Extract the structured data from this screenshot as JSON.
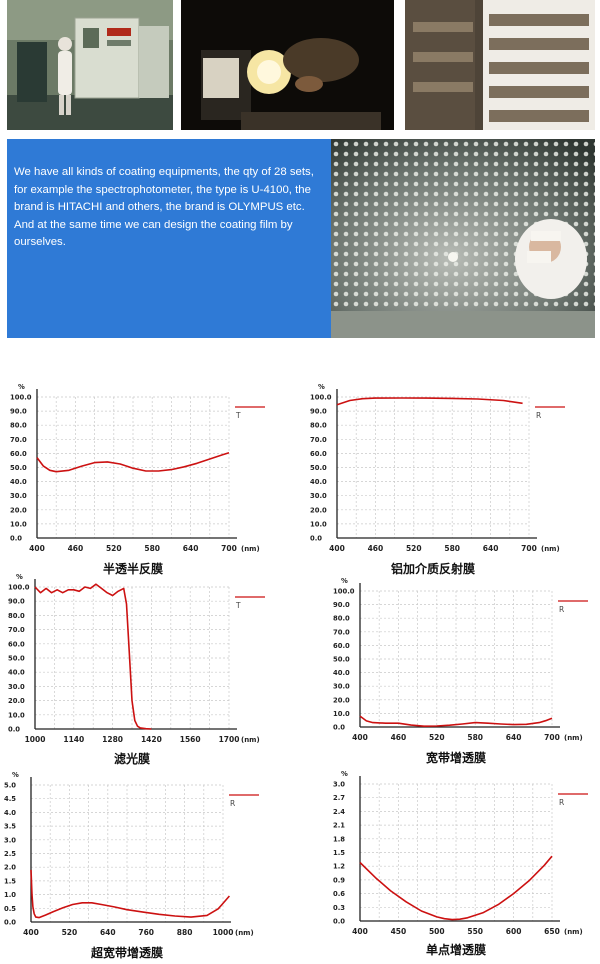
{
  "intro_text": "We have all kinds of coating equipments, the  qty of 28 sets, for example the spectrophotometer, the type is U-4100, the brand is HITACHI and others, the brand is OLYMPUS etc. And at the same time we can design the coating film by ourselves.",
  "colors": {
    "panel_blue": "#2f7ad6",
    "curve_red": "#cc1111",
    "grid": "#c9c9c9",
    "axis": "#222222"
  },
  "photos": [
    {
      "name": "coating-machine-photo"
    },
    {
      "name": "lens-inspection-photo"
    },
    {
      "name": "lens-tray-rack-photo"
    },
    {
      "name": "coating-dome-photo"
    }
  ],
  "chart_data": [
    {
      "type": "line",
      "title": "半透半反膜",
      "unit_label": "%",
      "xunit": "(nm)",
      "legend": "T",
      "grid": true,
      "xlim": [
        400,
        700
      ],
      "ylim": [
        0,
        100
      ],
      "xticks": [
        "400",
        "460",
        "520",
        "580",
        "640",
        "700"
      ],
      "yticks": [
        "0.0",
        "10.0",
        "20.0",
        "30.0",
        "40.0",
        "50.0",
        "60.0",
        "70.0",
        "80.0",
        "90.0",
        "100.0"
      ],
      "series": [
        {
          "x": [
            400,
            410,
            420,
            430,
            450,
            470,
            490,
            510,
            530,
            550,
            570,
            590,
            610,
            630,
            650,
            670,
            690,
            700
          ],
          "y": [
            57,
            51,
            48,
            47,
            48,
            51,
            53.5,
            54,
            52.5,
            49.5,
            47.5,
            47.5,
            48.5,
            50.5,
            53,
            56,
            59,
            60.5
          ]
        }
      ]
    },
    {
      "type": "line",
      "title": "铝加介质反射膜",
      "unit_label": "%",
      "xunit": "(nm)",
      "legend": "R",
      "grid": true,
      "xlim": [
        400,
        700
      ],
      "ylim": [
        0,
        100
      ],
      "xticks": [
        "400",
        "460",
        "520",
        "580",
        "640",
        "700"
      ],
      "yticks": [
        "0.0",
        "10.0",
        "20.0",
        "30.0",
        "40.0",
        "50.0",
        "60.0",
        "70.0",
        "80.0",
        "90.0",
        "100.0"
      ],
      "series": [
        {
          "x": [
            400,
            420,
            440,
            460,
            500,
            540,
            580,
            620,
            660,
            690
          ],
          "y": [
            94.5,
            97.5,
            98.8,
            99.2,
            99.3,
            99.2,
            99,
            98.6,
            97.5,
            95.5
          ]
        }
      ]
    },
    {
      "type": "line",
      "title": "滤光膜",
      "unit_label": "%",
      "xunit": "(nm)",
      "legend": "T",
      "grid": true,
      "xlim": [
        1000,
        1700
      ],
      "ylim": [
        0,
        100
      ],
      "xticks": [
        "1000",
        "1140",
        "1280",
        "1420",
        "1560",
        "1700"
      ],
      "yticks": [
        "0.0",
        "10.0",
        "20.0",
        "30.0",
        "40.0",
        "50.0",
        "60.0",
        "70.0",
        "80.0",
        "90.0",
        "100.0"
      ],
      "series": [
        {
          "x": [
            1000,
            1020,
            1040,
            1060,
            1080,
            1100,
            1120,
            1140,
            1160,
            1180,
            1200,
            1220,
            1240,
            1260,
            1280,
            1300,
            1320,
            1330,
            1340,
            1350,
            1360,
            1370,
            1380,
            1400,
            1420
          ],
          "y": [
            100,
            96,
            99,
            96,
            98,
            96,
            98,
            98,
            97,
            100,
            99,
            102,
            99,
            96,
            94,
            97,
            99,
            88,
            55,
            20,
            6,
            2,
            0.8,
            0.2,
            0
          ]
        }
      ]
    },
    {
      "type": "line",
      "title": "宽带增透膜",
      "unit_label": "%",
      "xunit": "(nm)",
      "legend": "R",
      "grid": true,
      "xlim": [
        400,
        700
      ],
      "ylim": [
        0,
        100
      ],
      "xticks": [
        "400",
        "460",
        "520",
        "580",
        "640",
        "700"
      ],
      "yticks": [
        "0.0",
        "10.0",
        "20.0",
        "30.0",
        "40.0",
        "50.0",
        "60.0",
        "70.0",
        "80.0",
        "90.0",
        "100.0"
      ],
      "series": [
        {
          "x": [
            400,
            410,
            420,
            440,
            460,
            480,
            500,
            520,
            540,
            560,
            580,
            600,
            620,
            640,
            660,
            680,
            690,
            700
          ],
          "y": [
            8,
            4.5,
            3.2,
            2.8,
            2.8,
            1.4,
            0.6,
            0.7,
            1.3,
            2.2,
            3.2,
            2.8,
            2.2,
            1.8,
            2.0,
            3.2,
            4.6,
            6.5
          ]
        }
      ]
    },
    {
      "type": "line",
      "title": "超宽带增透膜",
      "unit_label": "%",
      "xunit": "(nm)",
      "legend": "R",
      "grid": true,
      "xlim": [
        400,
        1000
      ],
      "ylim": [
        0,
        5
      ],
      "xticks": [
        "400",
        "520",
        "640",
        "760",
        "880",
        "1000"
      ],
      "yticks": [
        "0.0",
        "0.5",
        "1.0",
        "1.5",
        "2.0",
        "2.5",
        "3.0",
        "3.5",
        "4.0",
        "4.5",
        "5.0"
      ],
      "series": [
        {
          "x": [
            400,
            403,
            406,
            410,
            415,
            425,
            445,
            470,
            500,
            530,
            560,
            590,
            620,
            660,
            700,
            750,
            800,
            850,
            900,
            950,
            985,
            1000,
            1020
          ],
          "y": [
            1.9,
            1.0,
            0.55,
            0.3,
            0.18,
            0.16,
            0.25,
            0.38,
            0.52,
            0.64,
            0.7,
            0.7,
            0.64,
            0.55,
            0.45,
            0.36,
            0.28,
            0.22,
            0.18,
            0.24,
            0.48,
            0.68,
            0.95
          ]
        }
      ]
    },
    {
      "type": "line",
      "title": "单点增透膜",
      "unit_label": "%",
      "xunit": "(nm)",
      "legend": "R",
      "grid": true,
      "xlim": [
        400,
        650
      ],
      "ylim": [
        0,
        3.0
      ],
      "xticks": [
        "400",
        "450",
        "500",
        "550",
        "600",
        "650"
      ],
      "yticks": [
        "0.0",
        "0.3",
        "0.6",
        "0.9",
        "1.2",
        "1.5",
        "1.8",
        "2.1",
        "2.4",
        "2.7",
        "3.0"
      ],
      "series": [
        {
          "x": [
            400,
            420,
            440,
            460,
            480,
            500,
            510,
            520,
            530,
            540,
            560,
            580,
            600,
            620,
            640,
            650
          ],
          "y": [
            1.28,
            0.95,
            0.66,
            0.42,
            0.22,
            0.09,
            0.05,
            0.03,
            0.04,
            0.07,
            0.18,
            0.36,
            0.6,
            0.88,
            1.22,
            1.42
          ]
        }
      ]
    }
  ]
}
